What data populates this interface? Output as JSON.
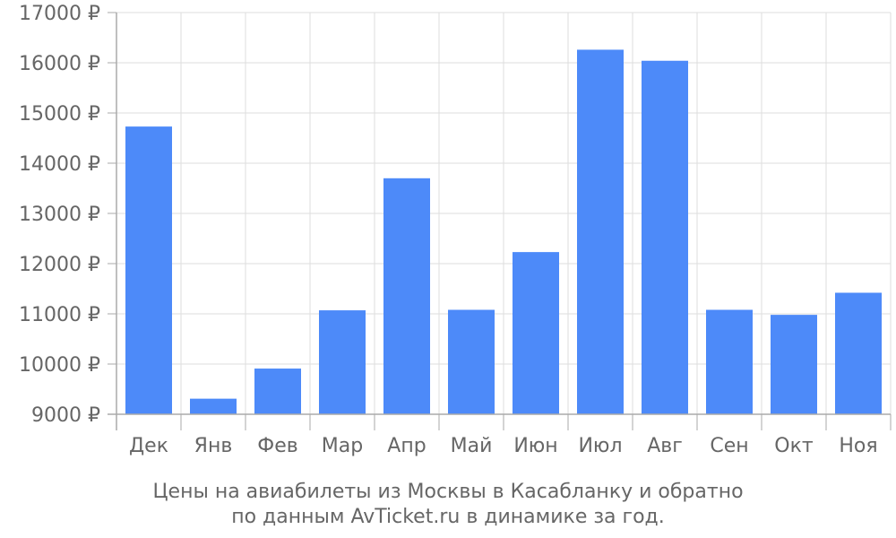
{
  "chart_data": {
    "type": "bar",
    "categories": [
      "Дек",
      "Янв",
      "Фев",
      "Мар",
      "Апр",
      "Май",
      "Июн",
      "Июл",
      "Авг",
      "Сен",
      "Окт",
      "Ноя"
    ],
    "series": [
      {
        "values": [
          14730,
          9310,
          9910,
          11070,
          13700,
          11080,
          12230,
          16260,
          16040,
          11080,
          10980,
          11420
        ],
        "color": "#4d8af9"
      }
    ],
    "ylim": [
      9000,
      17000
    ],
    "yticks": [
      9000,
      10000,
      11000,
      12000,
      13000,
      14000,
      15000,
      16000,
      17000
    ],
    "ytick_suffix": " ₽",
    "grid": true,
    "grid_color": "#dddddd",
    "axis_color": "#aaaaaa",
    "caption": {
      "line1": "Цены на авиабилеты из Москвы в Касабланку и обратно",
      "line2": "по данным AvTicket.ru в динамике за год."
    }
  }
}
